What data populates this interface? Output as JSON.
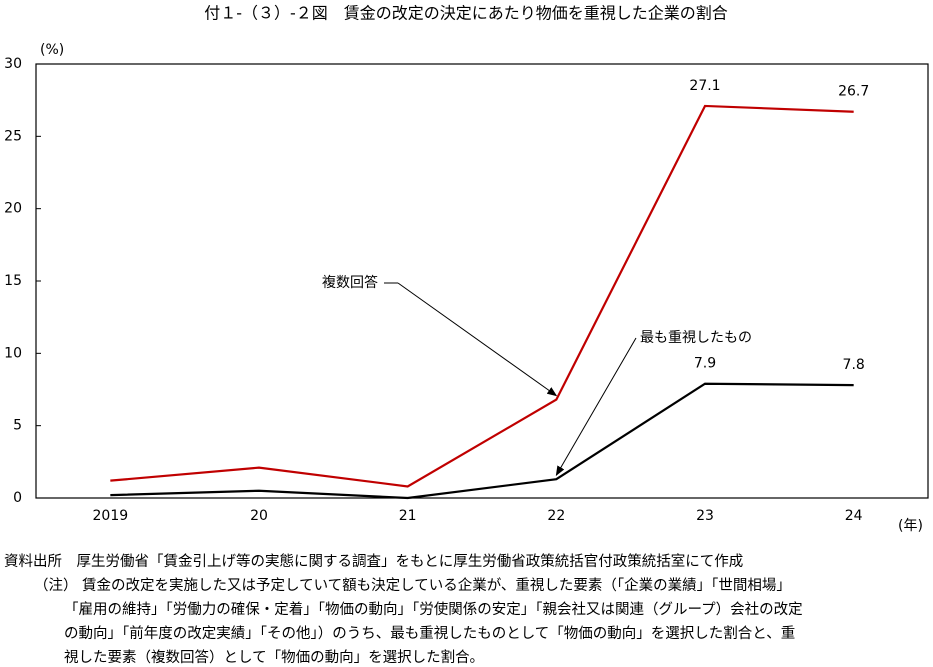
{
  "chart_data": {
    "type": "line",
    "title": "付１-（３）-２図　賃金の改定の決定にあたり物価を重視した企業の割合",
    "y_unit": "(%)",
    "x_unit": "(年)",
    "categories": [
      "2019",
      "20",
      "21",
      "22",
      "23",
      "24"
    ],
    "series": [
      {
        "name": "複数回答",
        "color": "#c00000",
        "values": [
          1.2,
          2.1,
          0.8,
          6.8,
          27.1,
          26.7
        ],
        "value_labels": [
          null,
          null,
          null,
          null,
          "27.1",
          "26.7"
        ]
      },
      {
        "name": "最も重視したもの",
        "color": "#000000",
        "values": [
          0.2,
          0.5,
          0.0,
          1.3,
          7.9,
          7.8
        ],
        "value_labels": [
          null,
          null,
          null,
          null,
          "7.9",
          "7.8"
        ]
      }
    ],
    "ylim": [
      0,
      30
    ],
    "yticks": [
      0,
      5,
      10,
      15,
      20,
      25,
      30
    ],
    "grid": false,
    "source": "資料出所　厚生労働省「賃金引上げ等の実態に関する調査」をもとに厚生労働省政策統括官付政策統括室にて作成",
    "note_label": "（注）",
    "note_lines": [
      "賃金の改定を実施した又は予定していて額も決定している企業が、重視した要素（「企業の業績」「世間相場」",
      "「雇用の維持」「労働力の確保・定着」「物価の動向」「労使関係の安定」「親会社又は関連（グループ）会社の改定",
      "の動向」「前年度の改定実績」「その他」）のうち、最も重視したものとして「物価の動向」を選択した割合と、重",
      "視した要素（複数回答）として「物価の動向」を選択した割合。"
    ]
  }
}
